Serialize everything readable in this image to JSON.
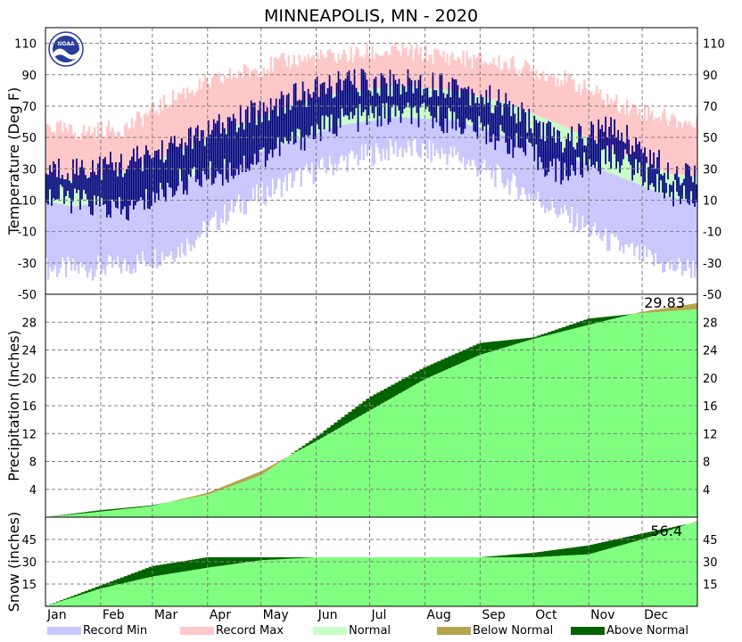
{
  "colors": {
    "record_min": "#c8c8ff",
    "record_max": "#ffc8c8",
    "normal": "#c8ffc8",
    "observed": "#000080",
    "normal_precip": "#80ff80",
    "below_normal": "#b4a550",
    "above_normal": "#006400",
    "noaa_blue": "#283c9b"
  },
  "chart_data": [
    {
      "type": "line",
      "title": "MINNEAPOLIS, MN - 2020",
      "ylabel": "Temperature (Deg F)",
      "ylim": [
        -50,
        120
      ],
      "yticks": [
        -30,
        -10,
        10,
        30,
        50,
        70,
        90,
        110
      ],
      "grid": true,
      "categories": [
        "Jan",
        "Feb",
        "Mar",
        "Apr",
        "May",
        "Jun",
        "Jul",
        "Aug",
        "Sep",
        "Oct",
        "Nov",
        "Dec"
      ],
      "series": [
        {
          "name": "Record Min",
          "values": [
            -34,
            -32,
            -21,
            5,
            22,
            35,
            43,
            39,
            22,
            2,
            -19,
            -33
          ]
        },
        {
          "name": "Record Max",
          "values": [
            53,
            56,
            78,
            90,
            99,
            102,
            105,
            101,
            97,
            88,
            72,
            62
          ]
        },
        {
          "name": "Normal",
          "values": [
            [
              6,
              23
            ],
            [
              10,
              28
            ],
            [
              22,
              41
            ],
            [
              35,
              57
            ],
            [
              47,
              70
            ],
            [
              58,
              79
            ],
            [
              63,
              83
            ],
            [
              61,
              80
            ],
            [
              51,
              72
            ],
            [
              39,
              58
            ],
            [
              26,
              41
            ],
            [
              12,
              27
            ]
          ]
        },
        {
          "name": "Observed",
          "values": [
            [
              10,
              30
            ],
            [
              2,
              33
            ],
            [
              21,
              46
            ],
            [
              30,
              60
            ],
            [
              46,
              75
            ],
            [
              61,
              85
            ],
            [
              65,
              85
            ],
            [
              61,
              84
            ],
            [
              48,
              70
            ],
            [
              27,
              48
            ],
            [
              38,
              56
            ],
            [
              15,
              28
            ]
          ]
        }
      ]
    },
    {
      "type": "area",
      "ylabel": "Precipitation (Inches)",
      "ylim": [
        0,
        32
      ],
      "yticks": [
        4,
        8,
        12,
        16,
        20,
        24,
        28
      ],
      "grid": true,
      "annotation": "29.83",
      "x_day": [
        0,
        31,
        60,
        91,
        121,
        152,
        182,
        213,
        244,
        274,
        305,
        335,
        365
      ],
      "series": [
        {
          "name": "Normal",
          "values": [
            0,
            0.8,
            1.6,
            3.5,
            6.6,
            10.9,
            15.3,
            19.8,
            23.3,
            25.6,
            27.6,
            29.5,
            30.7
          ]
        },
        {
          "name": "Observed",
          "values": [
            0,
            1.0,
            1.7,
            3.2,
            6.0,
            11.5,
            17.2,
            21.5,
            25.0,
            25.8,
            28.5,
            29.3,
            29.83
          ]
        }
      ]
    },
    {
      "type": "area",
      "ylabel": "Snow (inches)",
      "ylim": [
        0,
        60
      ],
      "yticks": [
        15,
        30,
        45
      ],
      "grid": true,
      "annotation": "56.4",
      "x_day": [
        0,
        31,
        60,
        91,
        121,
        152,
        182,
        213,
        244,
        274,
        305,
        335,
        365
      ],
      "series": [
        {
          "name": "Normal",
          "values": [
            0,
            12,
            20,
            26,
            31,
            33,
            33,
            33,
            33,
            33,
            35,
            45,
            57
          ]
        },
        {
          "name": "Observed",
          "values": [
            0,
            14,
            27,
            33,
            33,
            33,
            33,
            33,
            33,
            36,
            41,
            49,
            56.4
          ]
        }
      ]
    }
  ],
  "months": [
    "Jan",
    "Feb",
    "Mar",
    "Apr",
    "May",
    "Jun",
    "Jul",
    "Aug",
    "Sep",
    "Oct",
    "Nov",
    "Dec"
  ],
  "legend": [
    {
      "label": "Record Min",
      "color": "#c8c8ff"
    },
    {
      "label": "Record Max",
      "color": "#ffc8c8"
    },
    {
      "label": "Normal",
      "color": "#c8ffc8"
    },
    {
      "label": "Below Normal",
      "color": "#b4a550"
    },
    {
      "label": "Above Normal",
      "color": "#006400"
    }
  ]
}
